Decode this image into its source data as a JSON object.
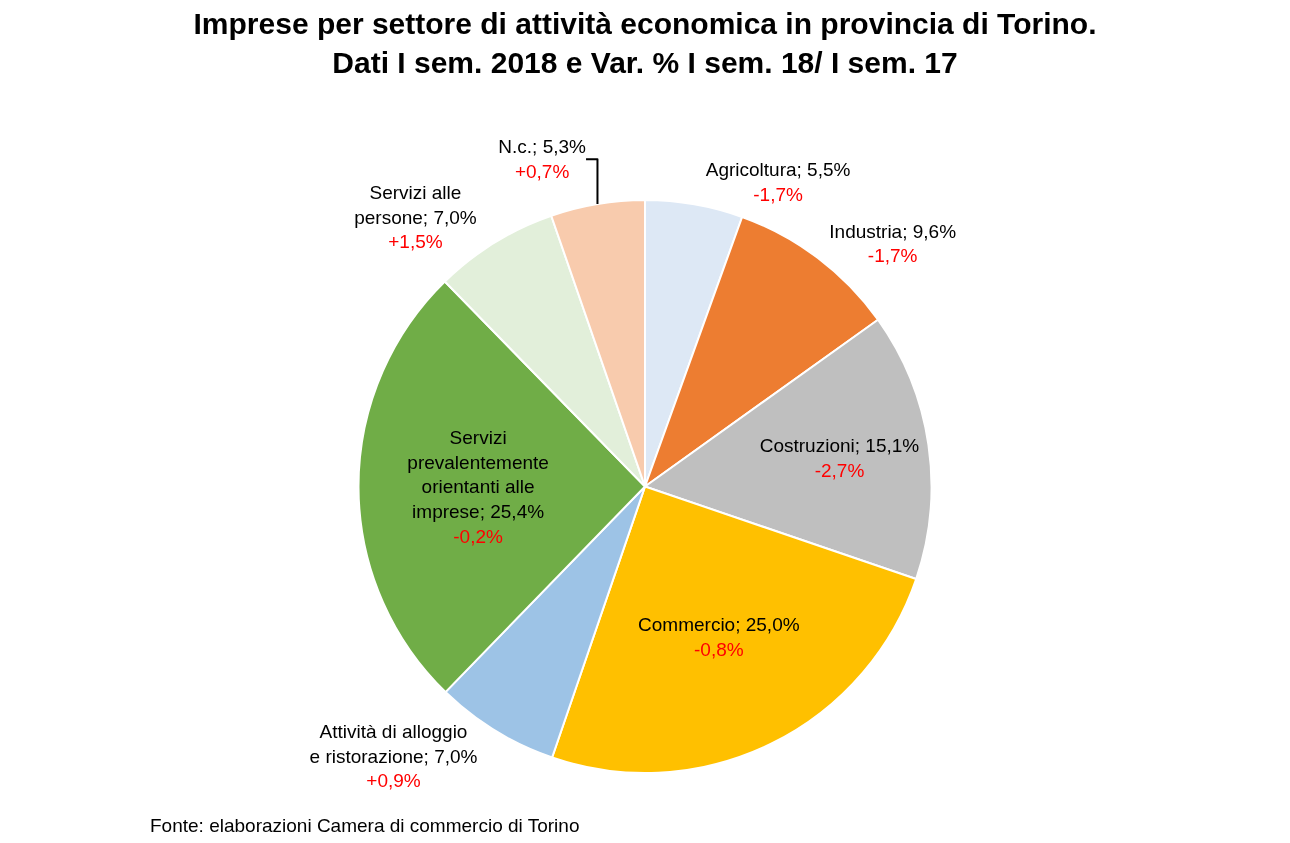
{
  "chart_data": {
    "type": "pie",
    "title": "Imprese per settore di attività economica in provincia di Torino.\nDati I sem. 2018 e Var. % I sem. 18/ I sem. 17",
    "categories": [
      "Agricoltura",
      "Industria",
      "Costruzioni",
      "Commercio",
      "Attività di alloggio e ristorazione",
      "Servizi prevalentemente orientanti alle imprese",
      "Servizi alle persone",
      "N.c."
    ],
    "values": [
      5.5,
      9.6,
      15.1,
      25.0,
      7.0,
      25.4,
      7.0,
      5.3
    ],
    "value_labels": [
      "5,5%",
      "9,6%",
      "15,1%",
      "25,0%",
      "7,0%",
      "25,4%",
      "7,0%",
      "5,3%"
    ],
    "colors": [
      "#dde8f5",
      "#ed7d31",
      "#bfbfbf",
      "#ffc000",
      "#9dc3e6",
      "#70ad47",
      "#e2efda",
      "#f8cbad"
    ],
    "legend": false,
    "annotations": [
      {
        "text": "-1,7%",
        "x": "Agricoltura"
      },
      {
        "text": "-1,7%",
        "x": "Industria"
      },
      {
        "text": "-2,7%",
        "x": "Costruzioni"
      },
      {
        "text": "-0,8%",
        "x": "Commercio"
      },
      {
        "text": "+0,9%",
        "x": "Attività di alloggio e ristorazione"
      },
      {
        "text": "-0,2%",
        "x": "Servizi prevalentemente orientanti alle imprese"
      },
      {
        "text": "+1,5%",
        "x": "Servizi alle persone"
      },
      {
        "text": "+0,7%",
        "x": "N.c."
      },
      "Fonte: elaborazioni Camera di commercio di Torino"
    ]
  }
}
